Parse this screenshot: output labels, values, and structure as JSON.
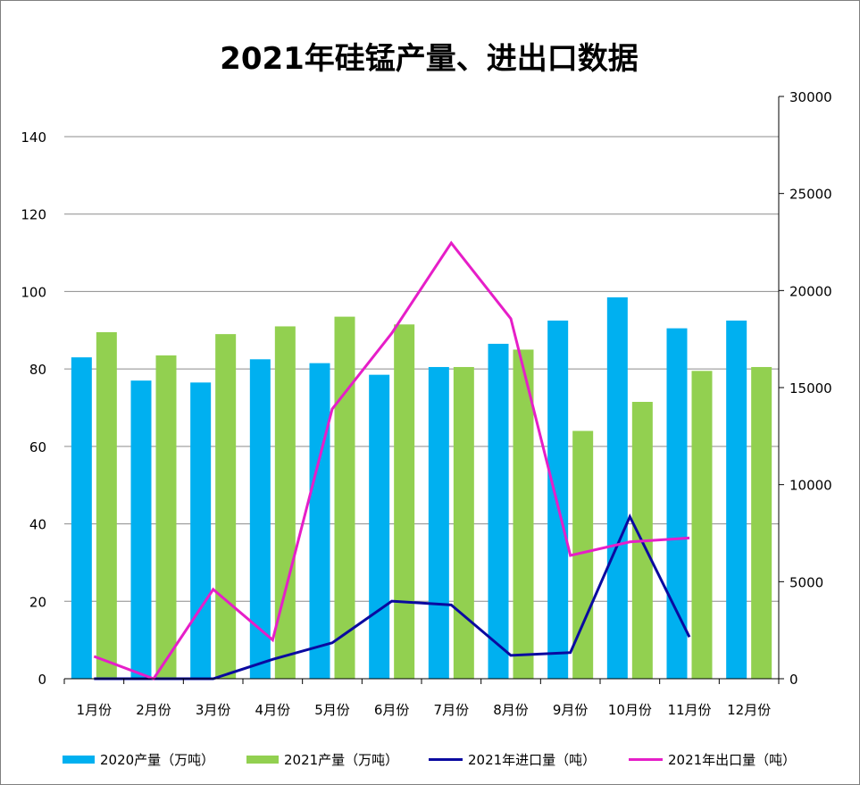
{
  "chart_data": {
    "type": "bar",
    "title": "2021年硅锰产量、进出口数据",
    "categories": [
      "1月份",
      "2月份",
      "3月份",
      "4月份",
      "5月份",
      "6月份",
      "7月份",
      "8月份",
      "9月份",
      "10月份",
      "11月份",
      "12月份"
    ],
    "y_left": {
      "ylim": [
        0,
        140
      ],
      "ticks": [
        0,
        20,
        40,
        60,
        80,
        100,
        120,
        140
      ]
    },
    "y_right": {
      "ylim": [
        0,
        30000
      ],
      "ticks": [
        0,
        5000,
        10000,
        15000,
        20000,
        25000,
        30000
      ]
    },
    "grid": true,
    "legend_position": "bottom",
    "series": [
      {
        "name": "2020产量（万吨）",
        "type": "bar",
        "axis": "left",
        "color": "#00B0F0",
        "values": [
          83,
          77,
          76.5,
          82.5,
          81.5,
          78.5,
          80.5,
          86.5,
          92.5,
          98.5,
          90.5,
          92.5
        ]
      },
      {
        "name": "2021产量（万吨）",
        "type": "bar",
        "axis": "left",
        "color": "#92D050",
        "values": [
          89.5,
          83.5,
          89,
          91,
          93.5,
          91.5,
          80.5,
          85,
          64,
          71.5,
          79.5,
          80.5
        ]
      },
      {
        "name": "2021年进口量（吨）",
        "type": "line",
        "axis": "right",
        "color": "#0A0AA0",
        "values": [
          0,
          0,
          0,
          1000,
          1850,
          4000,
          3800,
          1200,
          1350,
          8350,
          2150,
          null
        ]
      },
      {
        "name": "2021年出口量（吨）",
        "type": "line",
        "axis": "right",
        "color": "#E61EC8",
        "values": [
          1150,
          0,
          4600,
          2000,
          13900,
          17800,
          22450,
          18550,
          6350,
          7050,
          7250,
          null
        ]
      }
    ]
  }
}
